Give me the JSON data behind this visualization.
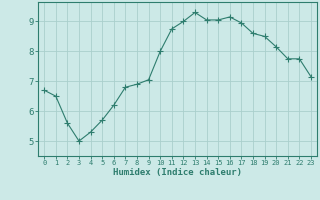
{
  "x": [
    0,
    1,
    2,
    3,
    4,
    5,
    6,
    7,
    8,
    9,
    10,
    11,
    12,
    13,
    14,
    15,
    16,
    17,
    18,
    19,
    20,
    21,
    22,
    23
  ],
  "y": [
    6.7,
    6.5,
    5.6,
    5.0,
    5.3,
    5.7,
    6.2,
    6.8,
    6.9,
    7.05,
    8.0,
    8.75,
    9.0,
    9.3,
    9.05,
    9.05,
    9.15,
    8.95,
    8.6,
    8.5,
    8.15,
    7.75,
    7.75,
    7.15
  ],
  "line_color": "#2e7d6e",
  "marker": "+",
  "marker_size": 4,
  "bg_color": "#cce9e7",
  "grid_color": "#aacfcc",
  "axis_color": "#2e7d6e",
  "xlabel": "Humidex (Indice chaleur)",
  "xlim": [
    -0.5,
    23.5
  ],
  "ylim": [
    4.5,
    9.65
  ],
  "yticks": [
    5,
    6,
    7,
    8,
    9
  ],
  "xticks": [
    0,
    1,
    2,
    3,
    4,
    5,
    6,
    7,
    8,
    9,
    10,
    11,
    12,
    13,
    14,
    15,
    16,
    17,
    18,
    19,
    20,
    21,
    22,
    23
  ],
  "font_color": "#2e7d6e",
  "xlabel_fontsize": 6.5,
  "tick_fontsize_x": 5.0,
  "tick_fontsize_y": 6.5
}
